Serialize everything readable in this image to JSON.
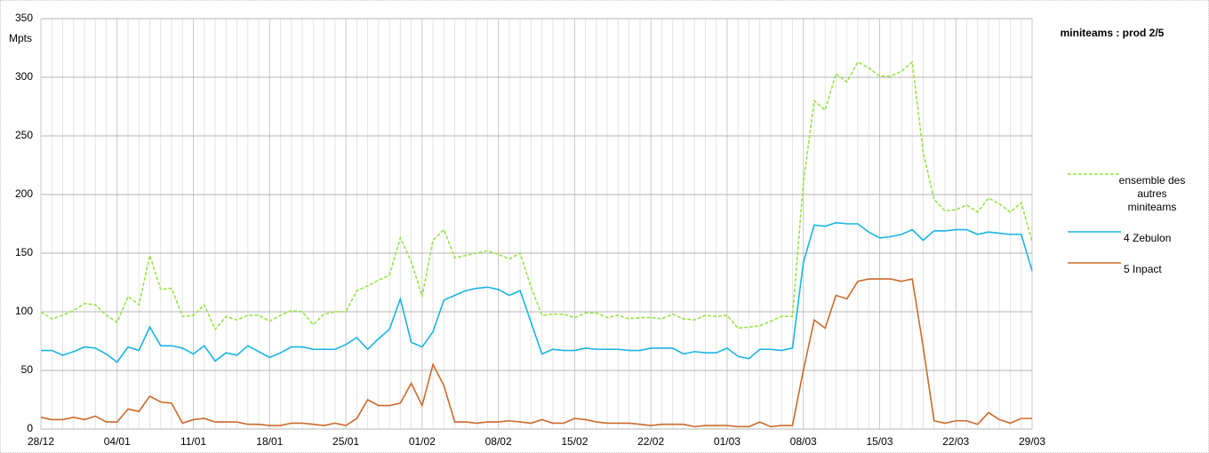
{
  "chart_data": {
    "type": "line",
    "title": "miniteams : prod 2/5",
    "y_label": "Mpts",
    "categories": [
      "28/12",
      null,
      null,
      null,
      null,
      null,
      null,
      "04/01",
      null,
      null,
      null,
      null,
      null,
      null,
      "11/01",
      null,
      null,
      null,
      null,
      null,
      null,
      "18/01",
      null,
      null,
      null,
      null,
      null,
      null,
      "25/01",
      null,
      null,
      null,
      null,
      null,
      null,
      "01/02",
      null,
      null,
      null,
      null,
      null,
      null,
      "08/02",
      null,
      null,
      null,
      null,
      null,
      null,
      "15/02",
      null,
      null,
      null,
      null,
      null,
      null,
      "22/02",
      null,
      null,
      null,
      null,
      null,
      null,
      "01/03",
      null,
      null,
      null,
      null,
      null,
      null,
      "08/03",
      null,
      null,
      null,
      null,
      null,
      null,
      "15/03",
      null,
      null,
      null,
      null,
      null,
      null,
      "22/03",
      null,
      null,
      null,
      null,
      null,
      null,
      "29/03"
    ],
    "series": [
      {
        "name": "ensemble des autres miniteams",
        "color": "#99e34a",
        "dashed": true,
        "values": [
          100,
          94,
          97,
          101,
          107,
          106,
          97,
          91,
          113,
          106,
          148,
          119,
          120,
          96,
          97,
          106,
          85,
          96,
          93,
          97,
          97,
          92,
          97,
          101,
          100,
          89,
          98,
          100,
          100,
          118,
          122,
          127,
          131,
          163,
          143,
          113,
          161,
          170,
          146,
          148,
          150,
          152,
          149,
          145,
          150,
          121,
          97,
          98,
          98,
          95,
          99,
          99,
          95,
          97,
          94,
          95,
          95,
          94,
          98,
          94,
          93,
          97,
          96,
          97,
          86,
          87,
          88,
          92,
          96,
          96,
          210,
          280,
          272,
          303,
          296,
          313,
          308,
          301,
          301,
          305,
          313,
          236,
          196,
          186,
          187,
          191,
          185,
          197,
          192,
          185,
          193,
          160
        ]
      },
      {
        "name": "4 Zebulon",
        "color": "#1ab4e3",
        "dashed": false,
        "values": [
          67,
          67,
          63,
          66,
          70,
          69,
          64,
          57,
          70,
          67,
          87,
          71,
          71,
          69,
          64,
          71,
          58,
          65,
          63,
          71,
          66,
          61,
          65,
          70,
          70,
          68,
          68,
          68,
          72,
          78,
          68,
          77,
          85,
          111,
          74,
          70,
          83,
          110,
          114,
          118,
          120,
          121,
          119,
          114,
          118,
          91,
          64,
          68,
          67,
          67,
          69,
          68,
          68,
          68,
          67,
          67,
          69,
          69,
          69,
          64,
          66,
          65,
          65,
          69,
          62,
          60,
          68,
          68,
          67,
          69,
          142,
          174,
          173,
          176,
          175,
          175,
          168,
          163,
          164,
          166,
          170,
          161,
          169,
          169,
          170,
          170,
          166,
          168,
          167,
          166,
          166,
          135
        ]
      },
      {
        "name": "5 Inpact",
        "color": "#cc6a2c",
        "dashed": false,
        "values": [
          10,
          8,
          8,
          10,
          8,
          11,
          6,
          6,
          17,
          15,
          28,
          23,
          22,
          5,
          8,
          9,
          6,
          6,
          6,
          4,
          4,
          3,
          3,
          5,
          5,
          4,
          3,
          5,
          3,
          9,
          25,
          20,
          20,
          22,
          39,
          20,
          55,
          37,
          6,
          6,
          5,
          6,
          6,
          7,
          6,
          5,
          8,
          5,
          5,
          9,
          8,
          6,
          5,
          5,
          5,
          4,
          3,
          4,
          4,
          4,
          2,
          3,
          3,
          3,
          2,
          2,
          6,
          2,
          3,
          3,
          50,
          93,
          86,
          114,
          111,
          126,
          128,
          128,
          128,
          126,
          128,
          70,
          7,
          5,
          7,
          7,
          4,
          14,
          8,
          5,
          9,
          9
        ]
      }
    ],
    "ylim": [
      0,
      350
    ],
    "yticks": [
      0,
      50,
      100,
      150,
      200,
      250,
      300,
      350
    ],
    "grid": true
  }
}
